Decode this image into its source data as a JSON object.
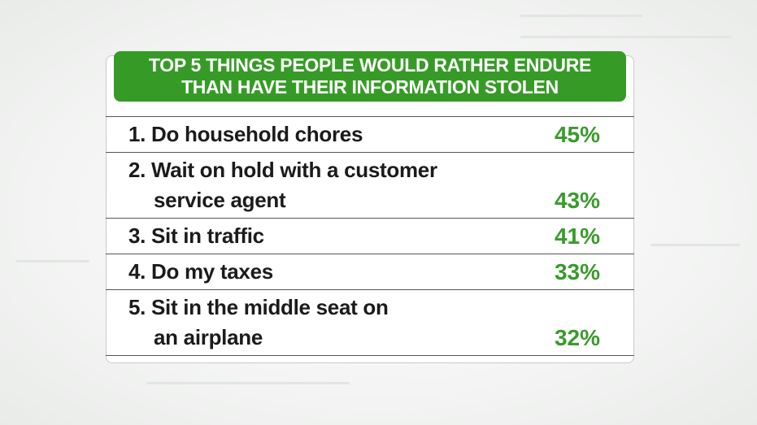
{
  "title": {
    "lines": [
      "TOP 5 THINGS PEOPLE WOULD RATHER ENDURE",
      "THAN HAVE THEIR INFORMATION STOLEN"
    ]
  },
  "items": [
    {
      "lines": [
        "1. Do household chores"
      ],
      "value": "45%"
    },
    {
      "lines": [
        "2. Wait on hold with a customer",
        "service agent"
      ],
      "value": "43%"
    },
    {
      "lines": [
        "3. Sit in traffic"
      ],
      "value": "41%"
    },
    {
      "lines": [
        "4. Do my taxes"
      ],
      "value": "33%"
    },
    {
      "lines": [
        "5. Sit in the middle seat on",
        "an airplane"
      ],
      "value": "32%"
    }
  ]
}
